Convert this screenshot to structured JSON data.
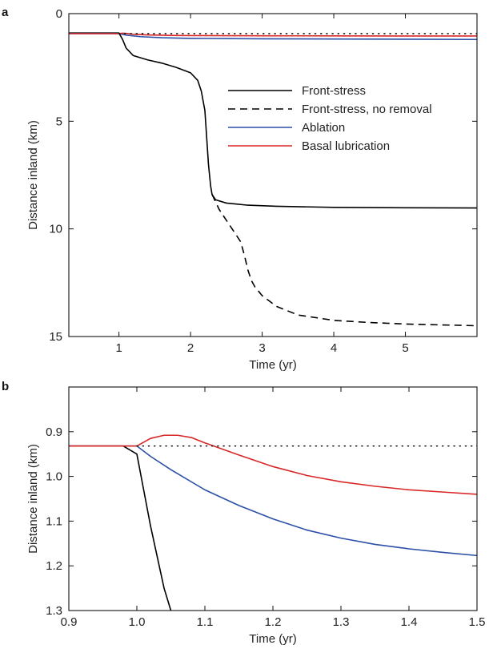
{
  "chart_data": [
    {
      "panel": "a",
      "type": "line",
      "xlabel": "Time (yr)",
      "ylabel": "Distance inland (km)",
      "xlim": [
        0.3,
        6.0
      ],
      "ylim": [
        0,
        15
      ],
      "y_inverted": true,
      "xticks": [
        1,
        2,
        3,
        4,
        5
      ],
      "yticks": [
        0,
        5,
        10,
        15
      ],
      "grid": false,
      "legend_position": "center-right",
      "series": [
        {
          "name": "Front-stress",
          "color": "#000000",
          "dash": "solid",
          "x": [
            0.3,
            1.0,
            1.05,
            1.1,
            1.2,
            1.4,
            1.6,
            1.8,
            2.0,
            2.1,
            2.15,
            2.2,
            2.22,
            2.25,
            2.28,
            2.3,
            2.35,
            2.5,
            2.8,
            3.2,
            4.0,
            5.0,
            6.0
          ],
          "y": [
            0.9,
            0.9,
            1.2,
            1.6,
            1.95,
            2.15,
            2.3,
            2.5,
            2.75,
            3.1,
            3.6,
            4.5,
            5.5,
            7.0,
            8.0,
            8.4,
            8.65,
            8.8,
            8.9,
            8.95,
            9.0,
            9.02,
            9.03
          ]
        },
        {
          "name": "Front-stress, no removal",
          "color": "#000000",
          "dash": "dashed",
          "x": [
            2.3,
            2.4,
            2.5,
            2.6,
            2.7,
            2.75,
            2.8,
            2.85,
            2.9,
            3.0,
            3.2,
            3.5,
            4.0,
            4.5,
            5.0,
            5.5,
            6.0
          ],
          "y": [
            8.4,
            9.1,
            9.6,
            10.1,
            10.6,
            11.2,
            11.9,
            12.4,
            12.7,
            13.1,
            13.6,
            14.0,
            14.25,
            14.35,
            14.42,
            14.46,
            14.5
          ]
        },
        {
          "name": "Ablation",
          "color": "#2b4fa8",
          "dash": "solid",
          "x": [
            0.3,
            1.0,
            1.1,
            1.3,
            1.6,
            2.0,
            3.0,
            4.0,
            5.0,
            6.0
          ],
          "y": [
            0.93,
            0.93,
            1.0,
            1.07,
            1.12,
            1.15,
            1.17,
            1.18,
            1.19,
            1.2
          ]
        },
        {
          "name": "Basal lubrication",
          "color": "#d92626",
          "dash": "solid",
          "x": [
            0.3,
            1.0,
            1.05,
            1.1,
            1.2,
            1.4,
            1.7,
            2.0,
            3.0,
            4.0,
            5.0,
            6.0
          ],
          "y": [
            0.93,
            0.93,
            0.91,
            0.92,
            0.96,
            0.99,
            1.01,
            1.02,
            1.03,
            1.035,
            1.04,
            1.04
          ]
        },
        {
          "name": "",
          "color": "#000000",
          "dash": "dotted",
          "x": [
            1.0,
            6.0
          ],
          "y": [
            0.93,
            0.93
          ]
        }
      ]
    },
    {
      "panel": "b",
      "type": "line",
      "xlabel": "Time (yr)",
      "ylabel": "Distance inland (km)",
      "xlim": [
        0.9,
        1.5
      ],
      "ylim": [
        0.8,
        1.3
      ],
      "y_inverted": true,
      "xticks": [
        0.9,
        1.0,
        1.1,
        1.2,
        1.3,
        1.4,
        1.5
      ],
      "xtick_labels": [
        "0.9",
        "1.0",
        "1.1",
        "1.2",
        "1.3",
        "1.4",
        "1.5"
      ],
      "yticks": [
        0.9,
        1.0,
        1.1,
        1.2,
        1.3
      ],
      "ytick_labels": [
        "0.9",
        "1.0",
        "1.1",
        "1.2",
        "1.3"
      ],
      "grid": false,
      "series": [
        {
          "name": "Front-stress",
          "color": "#000000",
          "dash": "solid",
          "x": [
            0.9,
            0.98,
            1.0,
            1.01,
            1.02,
            1.03,
            1.04,
            1.05
          ],
          "y": [
            0.932,
            0.932,
            0.95,
            1.03,
            1.11,
            1.18,
            1.25,
            1.3
          ]
        },
        {
          "name": "Ablation",
          "color": "#2b4fa8",
          "dash": "solid",
          "x": [
            0.9,
            1.0,
            1.02,
            1.05,
            1.1,
            1.15,
            1.2,
            1.25,
            1.3,
            1.35,
            1.4,
            1.45,
            1.5
          ],
          "y": [
            0.932,
            0.932,
            0.955,
            0.985,
            1.03,
            1.065,
            1.095,
            1.12,
            1.138,
            1.152,
            1.162,
            1.17,
            1.177
          ]
        },
        {
          "name": "Basal lubrication",
          "color": "#d92626",
          "dash": "solid",
          "x": [
            0.9,
            1.0,
            1.02,
            1.04,
            1.06,
            1.08,
            1.1,
            1.15,
            1.2,
            1.25,
            1.3,
            1.35,
            1.4,
            1.45,
            1.5
          ],
          "y": [
            0.932,
            0.932,
            0.915,
            0.908,
            0.908,
            0.913,
            0.925,
            0.952,
            0.978,
            0.998,
            1.012,
            1.022,
            1.03,
            1.035,
            1.04
          ]
        },
        {
          "name": "",
          "color": "#000000",
          "dash": "dotted",
          "x": [
            1.0,
            1.5
          ],
          "y": [
            0.932,
            0.932
          ]
        }
      ]
    }
  ]
}
